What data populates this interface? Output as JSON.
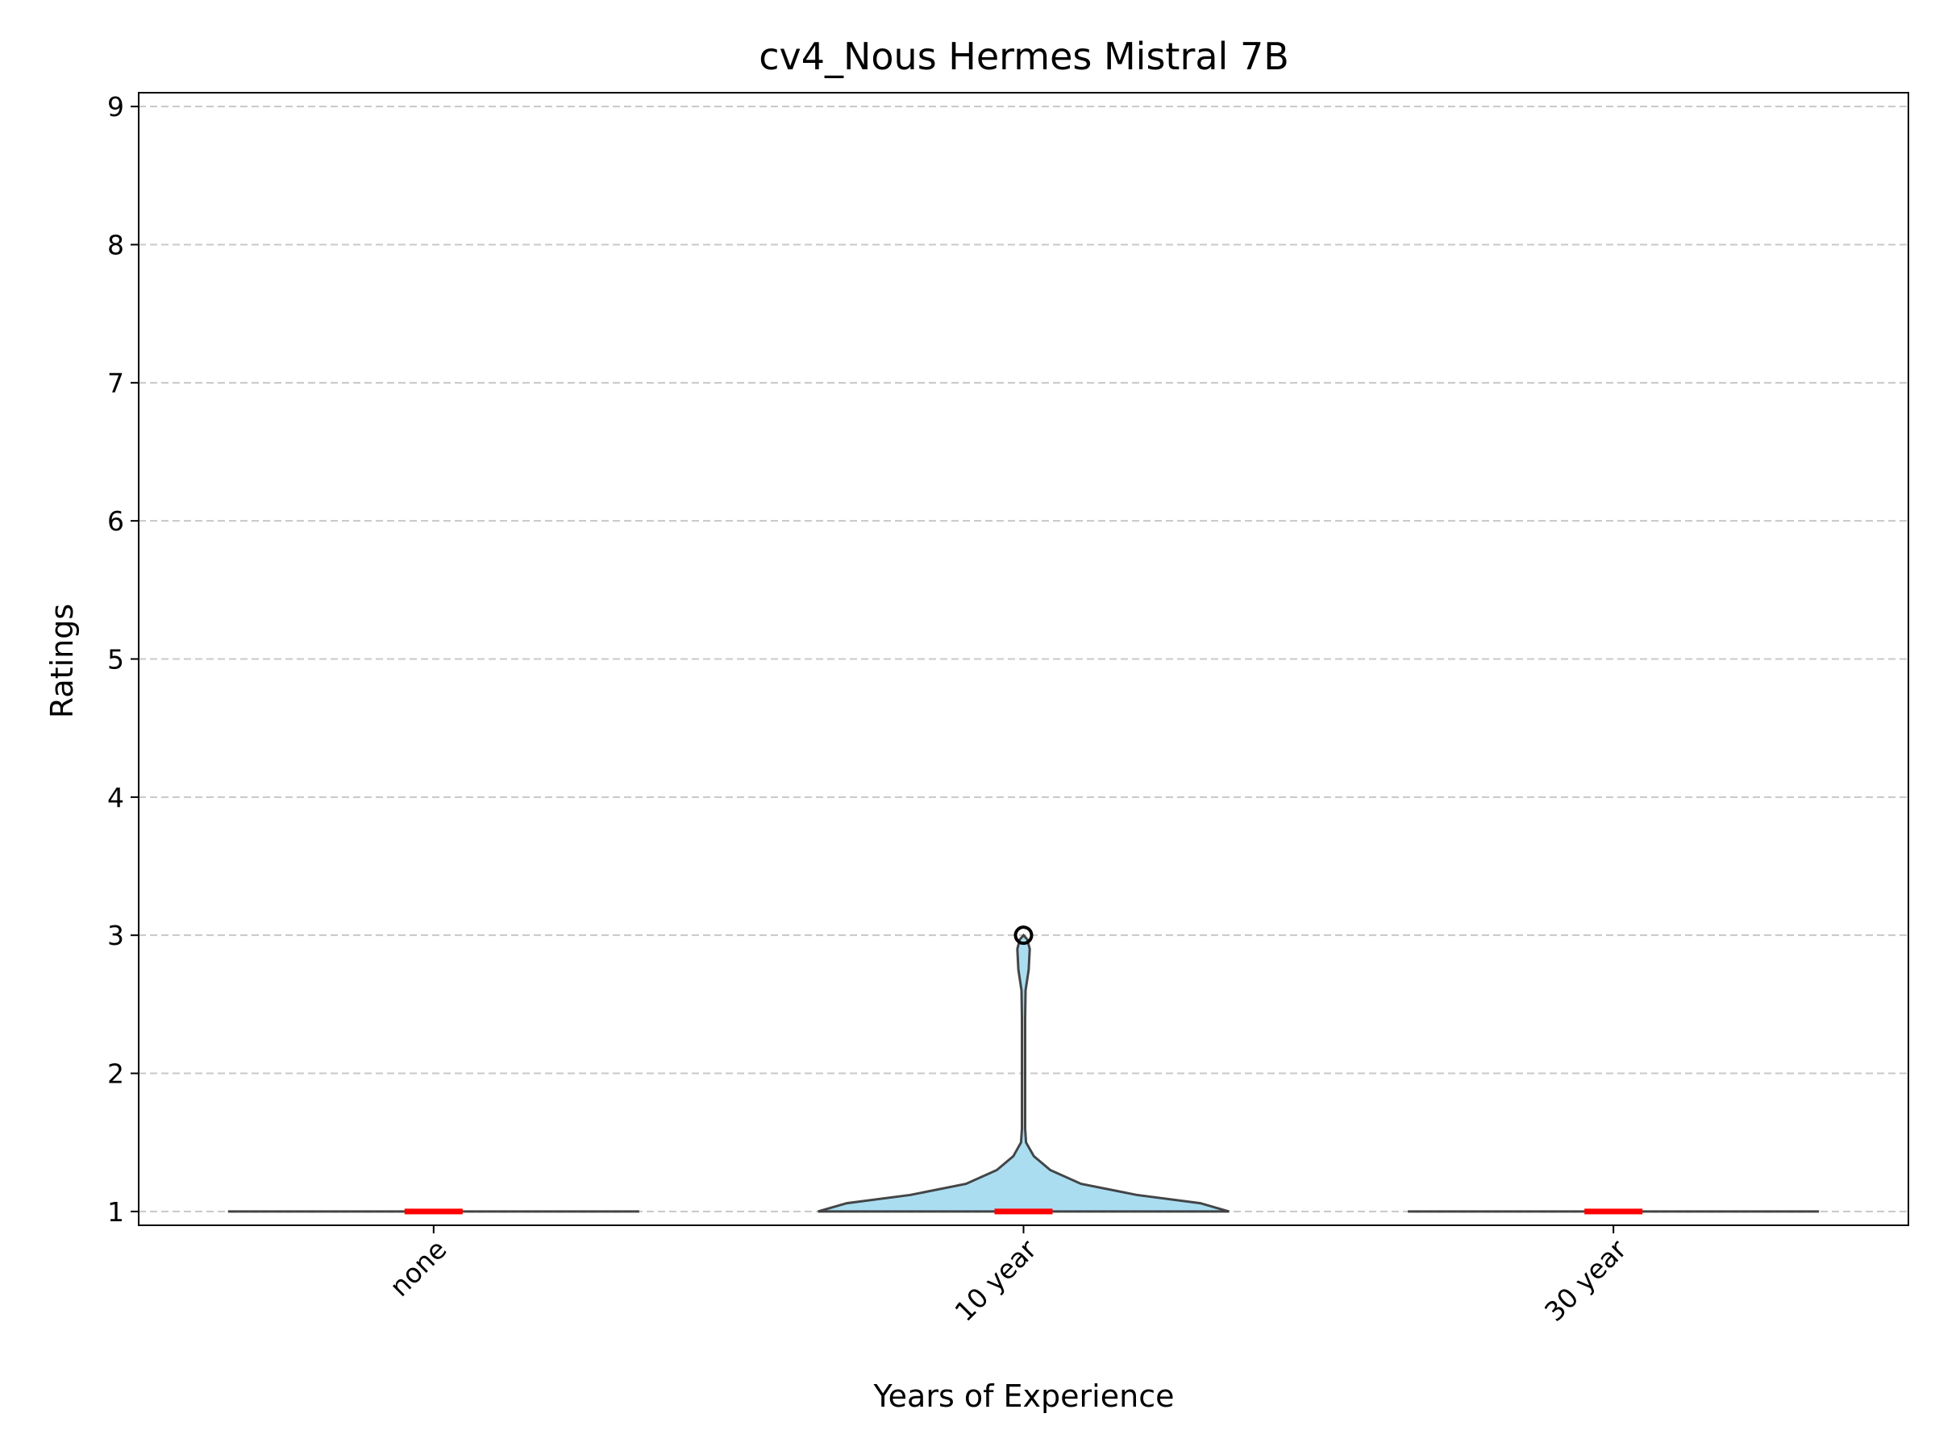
{
  "chart_data": {
    "type": "violin",
    "title": "cv4_Nous Hermes Mistral 7B",
    "xlabel": "Years of Experience",
    "ylabel": "Ratings",
    "categories": [
      "none",
      "10 year",
      "30 year"
    ],
    "ylim": [
      0.9,
      9.1
    ],
    "yticks": [
      1,
      2,
      3,
      4,
      5,
      6,
      7,
      8,
      9
    ],
    "grid": "y, dashed",
    "violin_color": "#87ceeb",
    "median_color": "#ff0000",
    "medians": [
      1,
      1,
      1
    ],
    "outliers": [
      [],
      [
        3
      ],
      []
    ],
    "distributions": [
      {
        "category": "none",
        "min": 1,
        "max": 1,
        "median": 1
      },
      {
        "category": "10 year",
        "min": 1,
        "max": 3,
        "median": 1
      },
      {
        "category": "30 year",
        "min": 1,
        "max": 1,
        "median": 1
      }
    ]
  }
}
